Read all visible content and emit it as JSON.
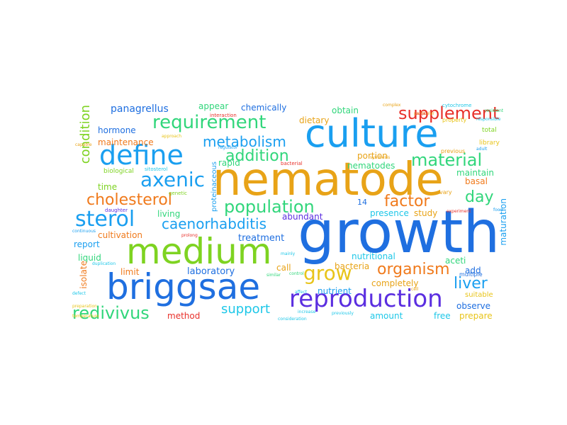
{
  "word_cloud": {
    "words": [
      {
        "text": "nematode",
        "color": "#e8a317"
      },
      {
        "text": "growth",
        "color": "#1f6fe0"
      },
      {
        "text": "culture",
        "color": "#1a9ff0"
      },
      {
        "text": "medium",
        "color": "#7ed321"
      },
      {
        "text": "briggsae",
        "color": "#1f6fe0"
      },
      {
        "text": "define",
        "color": "#1a9ff0"
      },
      {
        "text": "reproduction",
        "color": "#5b2ee0"
      },
      {
        "text": "requirement",
        "color": "#31d67b"
      },
      {
        "text": "supplement",
        "color": "#e8302a"
      },
      {
        "text": "axenic",
        "color": "#1a9ff0"
      },
      {
        "text": "sterol",
        "color": "#1a9ff0"
      },
      {
        "text": "cholesterol",
        "color": "#f07a1c"
      },
      {
        "text": "population",
        "color": "#31d67b"
      },
      {
        "text": "grow",
        "color": "#e8c41a"
      },
      {
        "text": "organism",
        "color": "#f07a1c"
      },
      {
        "text": "redivivus",
        "color": "#31d67b"
      },
      {
        "text": "liver",
        "color": "#1a9ff0"
      },
      {
        "text": "material",
        "color": "#31d67b"
      },
      {
        "text": "metabolism",
        "color": "#1a9ff0"
      },
      {
        "text": "addition",
        "color": "#31d67b"
      },
      {
        "text": "caenorhabditis",
        "color": "#1a9ff0"
      },
      {
        "text": "factor",
        "color": "#f07a1c"
      },
      {
        "text": "day",
        "color": "#31d67b"
      },
      {
        "text": "support",
        "color": "#1ec7e8"
      },
      {
        "text": "panagrellus",
        "color": "#1f6fe0"
      },
      {
        "text": "condition",
        "color": "#7ed321"
      },
      {
        "text": "hormone",
        "color": "#1f6fe0"
      },
      {
        "text": "maintenance",
        "color": "#f07a1c"
      },
      {
        "text": "time",
        "color": "#7ed321"
      },
      {
        "text": "living",
        "color": "#31d67b"
      },
      {
        "text": "cultivation",
        "color": "#f07a1c"
      },
      {
        "text": "report",
        "color": "#1a9ff0"
      },
      {
        "text": "liquid",
        "color": "#31d67b"
      },
      {
        "text": "limit",
        "color": "#f07a1c"
      },
      {
        "text": "isolate",
        "color": "#f07a1c"
      },
      {
        "text": "method",
        "color": "#e8302a"
      },
      {
        "text": "laboratory",
        "color": "#1f6fe0"
      },
      {
        "text": "treatment",
        "color": "#1f6fe0"
      },
      {
        "text": "abundant",
        "color": "#5b2ee0"
      },
      {
        "text": "call",
        "color": "#e8a317"
      },
      {
        "text": "presence",
        "color": "#1ec7e8"
      },
      {
        "text": "study",
        "color": "#e8a317"
      },
      {
        "text": "nutritional",
        "color": "#1ec7e8"
      },
      {
        "text": "bacteria",
        "color": "#e8a317"
      },
      {
        "text": "nutrient",
        "color": "#1a9ff0"
      },
      {
        "text": "completely",
        "color": "#e8a317"
      },
      {
        "text": "amount",
        "color": "#1ec7e8"
      },
      {
        "text": "free",
        "color": "#1ec7e8"
      },
      {
        "text": "prepare",
        "color": "#e8c41a"
      },
      {
        "text": "observe",
        "color": "#1f6fe0"
      },
      {
        "text": "suitable",
        "color": "#e8c41a"
      },
      {
        "text": "aceti",
        "color": "#31d67b"
      },
      {
        "text": "add",
        "color": "#1f6fe0"
      },
      {
        "text": "basal",
        "color": "#f07a1c"
      },
      {
        "text": "maintain",
        "color": "#31d67b"
      },
      {
        "text": "maturation",
        "color": "#1a9ff0"
      },
      {
        "text": "appear",
        "color": "#31d67b"
      },
      {
        "text": "chemically",
        "color": "#1f6fe0"
      },
      {
        "text": "obtain",
        "color": "#31d67b"
      },
      {
        "text": "dietary",
        "color": "#e8a317"
      },
      {
        "text": "portion",
        "color": "#e8a317"
      },
      {
        "text": "nematodes",
        "color": "#31d67b"
      },
      {
        "text": "rapid",
        "color": "#31d67b"
      },
      {
        "text": "proteinaceous",
        "color": "#1a9ff0"
      },
      {
        "text": "14",
        "color": "#1f6fe0"
      },
      {
        "text": "biological",
        "color": "#7ed321"
      },
      {
        "text": "total",
        "color": "#7ed321"
      },
      {
        "text": "library",
        "color": "#e8c41a"
      },
      {
        "text": "property",
        "color": "#e8c41a"
      },
      {
        "text": "previous",
        "color": "#e8a317"
      },
      {
        "text": "vary",
        "color": "#e8a317"
      },
      {
        "text": "multiple",
        "color": "#1f6fe0"
      },
      {
        "text": "genetic",
        "color": "#7ed321"
      },
      {
        "text": "bacterial",
        "color": "#e8302a"
      },
      {
        "text": "interaction",
        "color": "#e8302a"
      },
      {
        "text": "sitosterol",
        "color": "#1ec7e8"
      },
      {
        "text": "daughter",
        "color": "#5b2ee0"
      },
      {
        "text": "cytochrome",
        "color": "#1ec7e8"
      },
      {
        "text": "complex",
        "color": "#e8a317"
      },
      {
        "text": "particular",
        "color": "#e8a317"
      },
      {
        "text": "responsible",
        "color": "#1ec7e8"
      },
      {
        "text": "resistant",
        "color": "#31d67b"
      },
      {
        "text": "regulator",
        "color": "#1a9ff0"
      },
      {
        "text": "capable",
        "color": "#e8a317"
      },
      {
        "text": "approach",
        "color": "#e8c41a"
      },
      {
        "text": "preparation",
        "color": "#e8c41a"
      },
      {
        "text": "temperature",
        "color": "#e8c41a"
      },
      {
        "text": "duplication",
        "color": "#1ec7e8"
      },
      {
        "text": "prolong",
        "color": "#e8302a"
      },
      {
        "text": "increase",
        "color": "#1ec7e8"
      },
      {
        "text": "previously",
        "color": "#1ec7e8"
      },
      {
        "text": "continuous",
        "color": "#1a9ff0"
      },
      {
        "text": "experiment",
        "color": "#e8302a"
      },
      {
        "text": "affect",
        "color": "#1ec7e8"
      },
      {
        "text": "control",
        "color": "#31d67b"
      },
      {
        "text": "similar",
        "color": "#31d67b"
      },
      {
        "text": "consideration",
        "color": "#1ec7e8"
      },
      {
        "text": "mainly",
        "color": "#1ec7e8"
      },
      {
        "text": "synthesis",
        "color": "#e8a317"
      },
      {
        "text": "sugar",
        "color": "#e8302a"
      },
      {
        "text": "defect",
        "color": "#1ec7e8"
      },
      {
        "text": "cell",
        "color": "#e8a317"
      },
      {
        "text": "food",
        "color": "#1a9ff0"
      },
      {
        "text": "adult",
        "color": "#1a9ff0"
      }
    ]
  }
}
